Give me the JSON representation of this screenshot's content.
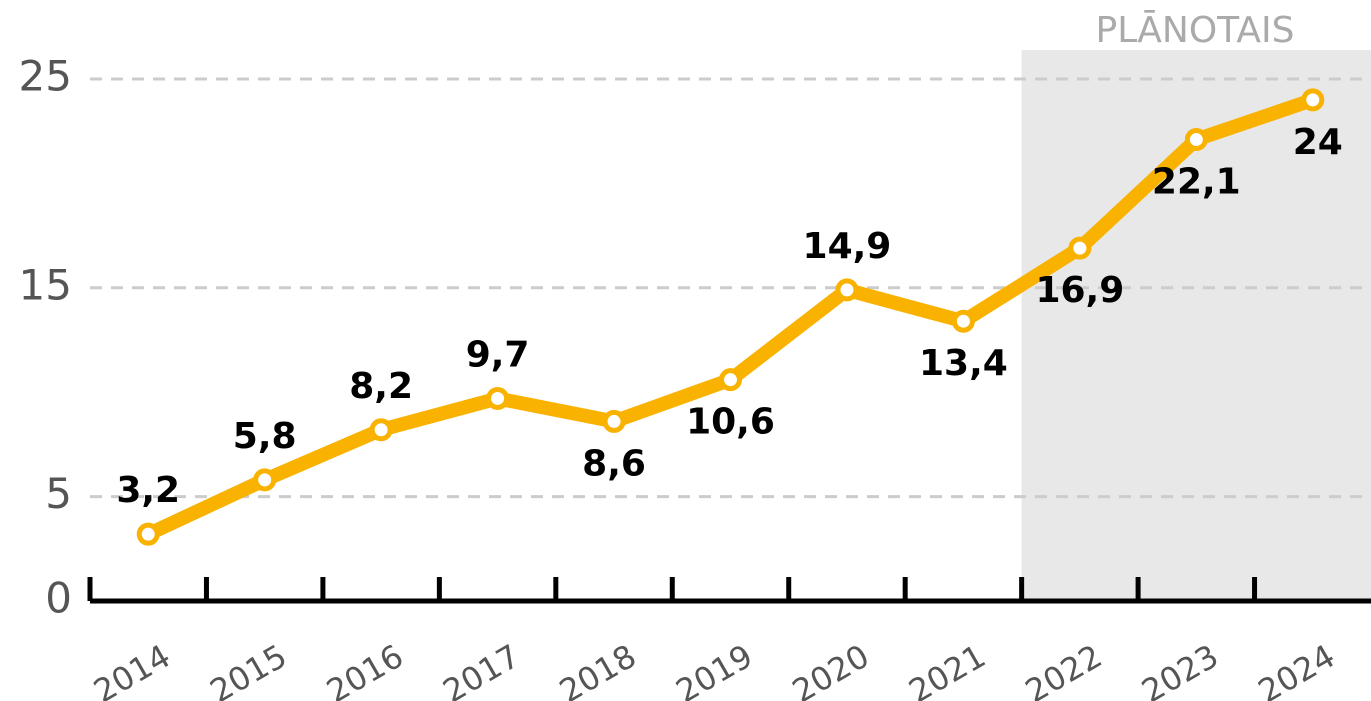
{
  "chart_data": {
    "type": "line",
    "categories": [
      "2014",
      "2015",
      "2016",
      "2017",
      "2018",
      "2019",
      "2020",
      "2021",
      "2022",
      "2023",
      "2024"
    ],
    "series": [
      {
        "name": null,
        "color": "#f9b200",
        "values": [
          3.2,
          5.8,
          8.2,
          9.7,
          8.6,
          10.6,
          14.9,
          13.4,
          16.9,
          22.1,
          24
        ],
        "value_labels": [
          "3,2",
          "5,8",
          "8,2",
          "9,7",
          "8,6",
          "10,6",
          "14,9",
          "13,4",
          "16,9",
          "22,1",
          "24"
        ]
      }
    ],
    "ylim": [
      0,
      25
    ],
    "yticks": [
      0,
      5,
      15,
      25
    ],
    "grid": true,
    "forecast_label": "PLĀNOTAIS",
    "forecast_from": "2022"
  }
}
